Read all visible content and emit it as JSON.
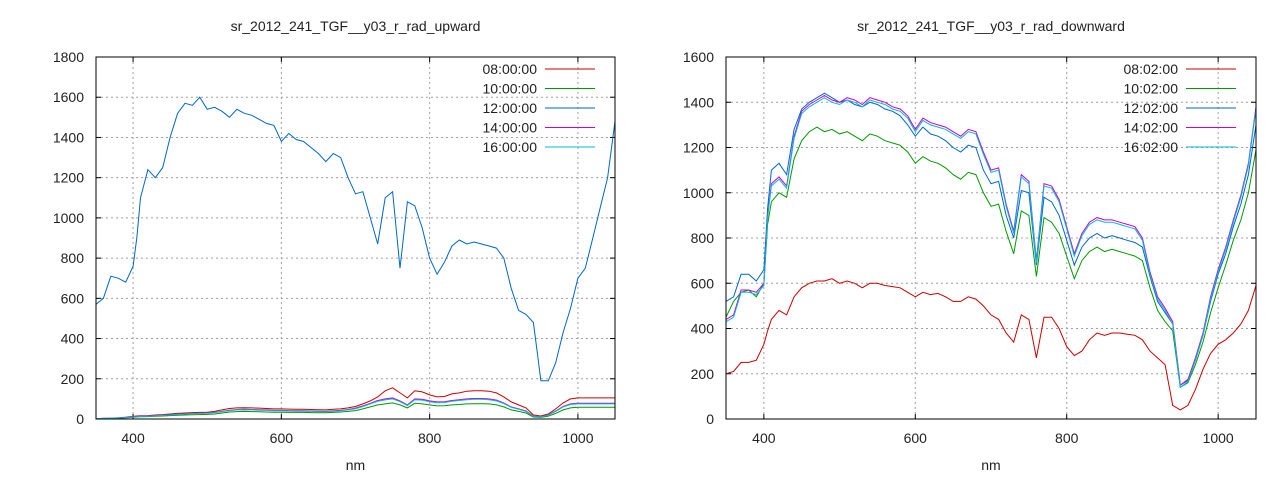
{
  "colors": [
    "#cc0000",
    "#009900",
    "#0066cc",
    "#cc00cc",
    "#00bbdd"
  ],
  "chart_data": [
    {
      "type": "line",
      "title": "sr_2012_241_TGF__y03_r_rad_upward",
      "xlabel": "nm",
      "ylabel": "",
      "xlim": [
        350,
        1050
      ],
      "ylim": [
        0,
        1800
      ],
      "xticks": [
        "400",
        "600",
        "800",
        "1000"
      ],
      "yticks": [
        "0",
        "200",
        "400",
        "600",
        "800",
        "1000",
        "1200",
        "1400",
        "1600",
        "1800"
      ],
      "grid": true,
      "legend_position": "top-right",
      "x": [
        350,
        360,
        370,
        380,
        390,
        400,
        405,
        410,
        420,
        430,
        440,
        450,
        460,
        470,
        480,
        490,
        500,
        510,
        520,
        530,
        540,
        550,
        560,
        570,
        580,
        590,
        600,
        610,
        620,
        630,
        640,
        650,
        660,
        670,
        680,
        690,
        700,
        710,
        720,
        730,
        740,
        750,
        760,
        770,
        780,
        790,
        800,
        810,
        820,
        830,
        840,
        850,
        860,
        870,
        880,
        890,
        900,
        910,
        920,
        930,
        940,
        950,
        960,
        970,
        980,
        990,
        1000,
        1010,
        1020,
        1030,
        1040,
        1050
      ],
      "series": [
        {
          "name": "08:00:00",
          "values": [
            2,
            3,
            4,
            6,
            9,
            13,
            15,
            16,
            17,
            20,
            22,
            25,
            28,
            30,
            32,
            33,
            34,
            38,
            45,
            52,
            55,
            56,
            55,
            54,
            52,
            50,
            50,
            49,
            48,
            48,
            47,
            46,
            45,
            48,
            50,
            55,
            62,
            75,
            90,
            110,
            140,
            155,
            130,
            105,
            140,
            135,
            120,
            110,
            112,
            125,
            130,
            138,
            140,
            140,
            138,
            130,
            110,
            85,
            70,
            55,
            20,
            15,
            25,
            50,
            80,
            100,
            105,
            105,
            105,
            105,
            105,
            105
          ]
        },
        {
          "name": "10:00:00",
          "values": [
            1,
            2,
            3,
            4,
            6,
            9,
            10,
            11,
            12,
            14,
            15,
            17,
            19,
            20,
            21,
            22,
            23,
            25,
            30,
            35,
            37,
            38,
            37,
            36,
            35,
            34,
            34,
            33,
            33,
            33,
            32,
            31,
            31,
            33,
            35,
            38,
            42,
            50,
            60,
            70,
            75,
            80,
            70,
            55,
            78,
            75,
            70,
            65,
            66,
            70,
            72,
            75,
            76,
            76,
            75,
            70,
            60,
            45,
            38,
            30,
            10,
            8,
            14,
            28,
            45,
            55,
            58,
            58,
            58,
            58,
            58,
            58
          ]
        },
        {
          "name": "12:00:00",
          "values": [
            570,
            600,
            710,
            700,
            680,
            760,
            900,
            1100,
            1240,
            1200,
            1250,
            1400,
            1520,
            1570,
            1560,
            1600,
            1540,
            1550,
            1530,
            1500,
            1540,
            1520,
            1510,
            1490,
            1470,
            1460,
            1380,
            1420,
            1390,
            1380,
            1350,
            1320,
            1280,
            1320,
            1300,
            1200,
            1120,
            1130,
            1000,
            870,
            1100,
            1130,
            750,
            1080,
            1060,
            950,
            800,
            720,
            780,
            860,
            890,
            870,
            880,
            870,
            860,
            850,
            800,
            650,
            540,
            520,
            480,
            190,
            190,
            280,
            430,
            550,
            700,
            750,
            900,
            1050,
            1200,
            1480
          ]
        },
        {
          "name": "14:00:00",
          "values": [
            2,
            3,
            4,
            5,
            8,
            11,
            12,
            14,
            15,
            17,
            19,
            21,
            24,
            26,
            28,
            29,
            30,
            33,
            38,
            44,
            47,
            48,
            47,
            46,
            45,
            43,
            43,
            42,
            41,
            41,
            40,
            39,
            38,
            41,
            43,
            47,
            54,
            65,
            78,
            92,
            100,
            105,
            90,
            70,
            100,
            98,
            90,
            85,
            86,
            92,
            96,
            100,
            102,
            102,
            100,
            94,
            80,
            60,
            50,
            40,
            14,
            11,
            20,
            40,
            62,
            75,
            78,
            78,
            78,
            78,
            78,
            78
          ]
        },
        {
          "name": "16:00:00",
          "values": [
            2,
            3,
            4,
            5,
            7,
            10,
            11,
            13,
            14,
            16,
            18,
            20,
            23,
            25,
            27,
            28,
            29,
            32,
            37,
            42,
            45,
            46,
            45,
            44,
            43,
            41,
            41,
            40,
            39,
            39,
            38,
            37,
            36,
            39,
            41,
            45,
            51,
            62,
            75,
            88,
            95,
            100,
            86,
            67,
            96,
            94,
            86,
            81,
            82,
            88,
            92,
            96,
            98,
            98,
            96,
            90,
            77,
            58,
            48,
            38,
            13,
            10,
            19,
            38,
            60,
            72,
            75,
            75,
            75,
            75,
            75,
            75
          ]
        }
      ]
    },
    {
      "type": "line",
      "title": "sr_2012_241_TGF__y03_r_rad_downward",
      "xlabel": "nm",
      "ylabel": "",
      "xlim": [
        350,
        1050
      ],
      "ylim": [
        0,
        1600
      ],
      "xticks": [
        "400",
        "600",
        "800",
        "1000"
      ],
      "yticks": [
        "0",
        "200",
        "400",
        "600",
        "800",
        "1000",
        "1200",
        "1400",
        "1600"
      ],
      "grid": true,
      "legend_position": "top-right",
      "x": [
        350,
        360,
        370,
        380,
        390,
        400,
        405,
        410,
        420,
        430,
        440,
        450,
        460,
        470,
        480,
        490,
        500,
        510,
        520,
        530,
        540,
        550,
        560,
        570,
        580,
        590,
        600,
        610,
        620,
        630,
        640,
        650,
        660,
        670,
        680,
        690,
        700,
        710,
        720,
        730,
        740,
        750,
        760,
        770,
        780,
        790,
        800,
        810,
        820,
        830,
        840,
        850,
        860,
        870,
        880,
        890,
        900,
        910,
        920,
        930,
        940,
        950,
        960,
        970,
        980,
        990,
        1000,
        1010,
        1020,
        1030,
        1040,
        1050
      ],
      "series": [
        {
          "name": "08:02:00",
          "values": [
            200,
            210,
            250,
            250,
            260,
            330,
            390,
            440,
            480,
            460,
            540,
            580,
            600,
            610,
            610,
            620,
            600,
            610,
            600,
            580,
            600,
            600,
            590,
            585,
            580,
            560,
            540,
            560,
            550,
            555,
            540,
            520,
            520,
            540,
            530,
            500,
            460,
            440,
            380,
            340,
            460,
            440,
            270,
            450,
            450,
            400,
            320,
            280,
            300,
            350,
            380,
            370,
            380,
            380,
            375,
            370,
            350,
            300,
            270,
            240,
            60,
            40,
            60,
            130,
            220,
            290,
            330,
            350,
            380,
            420,
            480,
            590
          ]
        },
        {
          "name": "10:02:00",
          "values": [
            450,
            520,
            560,
            570,
            540,
            600,
            860,
            960,
            1000,
            980,
            1150,
            1230,
            1270,
            1290,
            1270,
            1280,
            1260,
            1270,
            1250,
            1230,
            1260,
            1250,
            1230,
            1220,
            1210,
            1180,
            1130,
            1160,
            1140,
            1130,
            1110,
            1080,
            1060,
            1090,
            1080,
            1000,
            940,
            950,
            830,
            730,
            920,
            900,
            630,
            890,
            870,
            820,
            720,
            620,
            700,
            740,
            760,
            740,
            750,
            740,
            730,
            720,
            700,
            580,
            480,
            430,
            390,
            140,
            160,
            240,
            340,
            470,
            580,
            680,
            790,
            880,
            1000,
            1190
          ]
        },
        {
          "name": "12:02:00",
          "values": [
            520,
            540,
            640,
            640,
            610,
            660,
            930,
            1100,
            1130,
            1080,
            1280,
            1370,
            1400,
            1420,
            1440,
            1420,
            1400,
            1410,
            1390,
            1380,
            1400,
            1390,
            1370,
            1360,
            1340,
            1300,
            1250,
            1290,
            1260,
            1250,
            1230,
            1200,
            1180,
            1210,
            1200,
            1100,
            1040,
            1050,
            900,
            800,
            1010,
            1000,
            680,
            980,
            960,
            900,
            790,
            680,
            760,
            800,
            820,
            800,
            810,
            800,
            790,
            780,
            760,
            630,
            520,
            470,
            420,
            150,
            170,
            260,
            370,
            520,
            640,
            730,
            850,
            950,
            1080,
            1300
          ]
        },
        {
          "name": "14:02:00",
          "values": [
            440,
            460,
            570,
            570,
            560,
            600,
            900,
            1040,
            1070,
            1030,
            1250,
            1360,
            1390,
            1410,
            1430,
            1410,
            1400,
            1420,
            1410,
            1390,
            1420,
            1410,
            1400,
            1380,
            1370,
            1340,
            1280,
            1330,
            1310,
            1300,
            1290,
            1270,
            1250,
            1280,
            1270,
            1180,
            1100,
            1110,
            950,
            830,
            1080,
            1050,
            700,
            1040,
            1030,
            970,
            850,
            730,
            820,
            870,
            890,
            880,
            880,
            870,
            860,
            850,
            800,
            650,
            540,
            490,
            430,
            150,
            175,
            270,
            380,
            540,
            660,
            760,
            880,
            990,
            1130,
            1380
          ]
        },
        {
          "name": "16:02:00",
          "values": [
            430,
            450,
            560,
            560,
            550,
            590,
            890,
            1030,
            1060,
            1020,
            1240,
            1350,
            1380,
            1400,
            1420,
            1400,
            1390,
            1410,
            1400,
            1380,
            1410,
            1400,
            1390,
            1370,
            1360,
            1330,
            1270,
            1320,
            1300,
            1290,
            1280,
            1260,
            1240,
            1270,
            1260,
            1170,
            1090,
            1100,
            940,
            820,
            1070,
            1040,
            690,
            1030,
            1020,
            960,
            840,
            720,
            810,
            860,
            880,
            870,
            870,
            860,
            850,
            840,
            790,
            640,
            530,
            480,
            420,
            140,
            165,
            260,
            370,
            530,
            650,
            750,
            870,
            980,
            1120,
            1370
          ]
        }
      ]
    }
  ]
}
